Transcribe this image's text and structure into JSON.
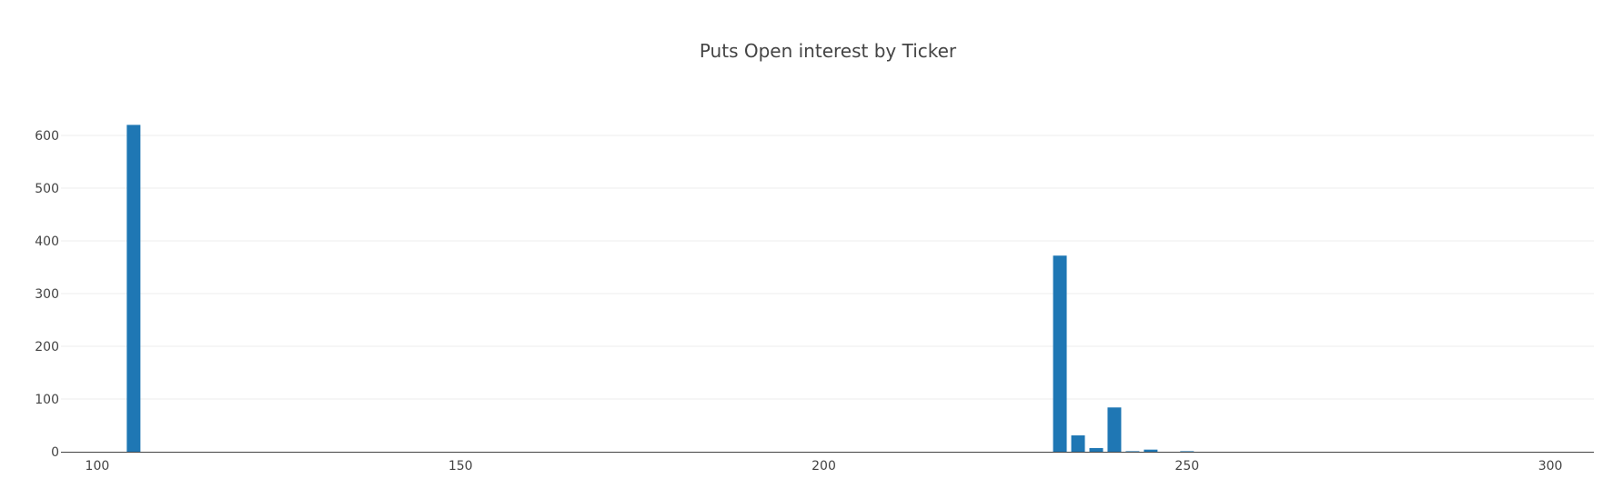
{
  "chart_data": {
    "type": "bar",
    "title": "Puts Open interest by Ticker",
    "xlabel": "",
    "ylabel": "",
    "xlim": [
      95,
      306
    ],
    "ylim": [
      0,
      650
    ],
    "x_ticks": [
      100,
      150,
      200,
      250,
      300
    ],
    "y_ticks": [
      0,
      100,
      200,
      300,
      400,
      500,
      600
    ],
    "grid": "horizontal",
    "bar_color": "#1f77b4",
    "x": [
      105,
      232.5,
      235,
      237.5,
      240,
      242.5,
      245,
      250
    ],
    "values": [
      620,
      372,
      31,
      7,
      84,
      1,
      4,
      1
    ]
  }
}
